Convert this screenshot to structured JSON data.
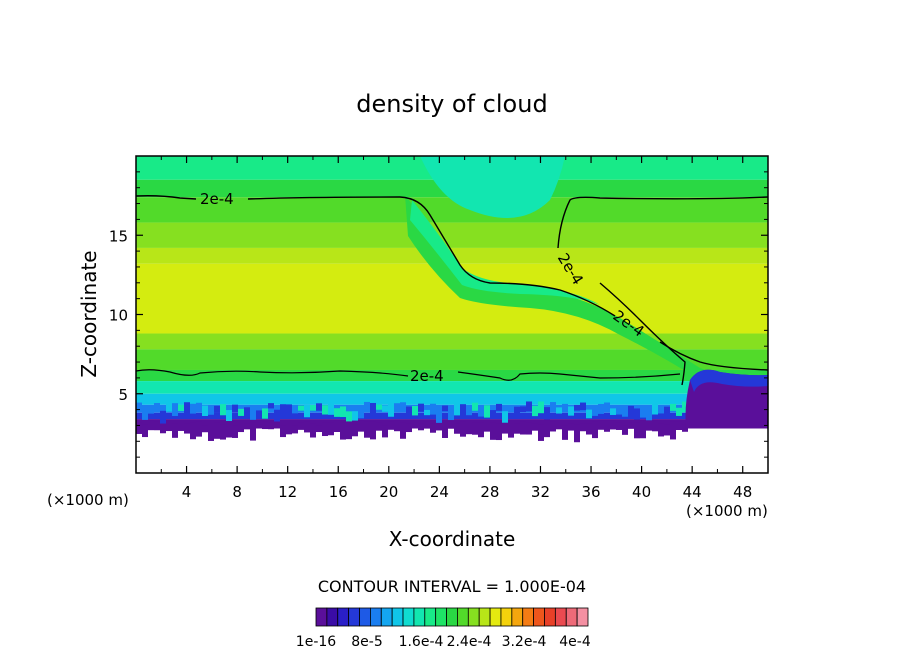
{
  "chart_data": {
    "type": "heatmap",
    "title": "density of cloud",
    "xlabel": "X-coordinate",
    "ylabel": "Z-coordinate",
    "x_unit": "(×1000 m)",
    "xlim": [
      0,
      50
    ],
    "ylim": [
      0,
      20
    ],
    "x_ticks": [
      4,
      8,
      12,
      16,
      20,
      24,
      28,
      32,
      36,
      40,
      44,
      48
    ],
    "y_ticks": [
      5,
      10,
      15
    ],
    "contour_interval_text": "CONTOUR INTERVAL = 1.000E-04",
    "colorbar": {
      "labels": [
        "1e-16",
        "8e-5",
        "1.6e-4",
        "2.4e-4",
        "3.2e-4",
        "4e-4"
      ],
      "colors": [
        "#5a0f9a",
        "#3a0ca6",
        "#2a1fc8",
        "#2438d8",
        "#1e5ae6",
        "#1a7ef0",
        "#14a6f0",
        "#10c6e8",
        "#10dcd0",
        "#12e6b0",
        "#18ea88",
        "#1ee466",
        "#2ad844",
        "#52da2a",
        "#86e020",
        "#b8e618",
        "#e4ea10",
        "#f4d20c",
        "#f4a60e",
        "#f47c14",
        "#ee561c",
        "#e84028",
        "#ea4a50",
        "#ee6a78",
        "#f490a2"
      ]
    },
    "contour_labels": [
      "2e-4",
      "2e-4",
      "2e-4",
      "2e-4"
    ],
    "bands": [
      {
        "z_top": 20.0,
        "color": "#18ea88",
        "note": "top band"
      },
      {
        "z_top": 18.5,
        "color": "#2ad844"
      },
      {
        "z_top": 17.4,
        "color": "#52da2a"
      },
      {
        "z_top": 15.8,
        "color": "#86e020"
      },
      {
        "z_top": 14.2,
        "color": "#b8e618"
      },
      {
        "z_top": 13.2,
        "color": "#d4ec10"
      },
      {
        "z_top": 8.8,
        "color": "#86e020"
      },
      {
        "z_top": 7.8,
        "color": "#52da2a"
      },
      {
        "z_top": 6.5,
        "color": "#2ad844"
      },
      {
        "z_top": 5.8,
        "color": "#12e6b0"
      },
      {
        "z_top": 5.0,
        "color": "#10c6e8"
      },
      {
        "z_top": 4.3,
        "color": "#1a7ef0"
      },
      {
        "z_top": 3.8,
        "color": "#2438d8"
      },
      {
        "z_top": 3.4,
        "color": "#5a0f9a"
      },
      {
        "z_top": 2.8,
        "color": "#ffffff"
      }
    ]
  }
}
